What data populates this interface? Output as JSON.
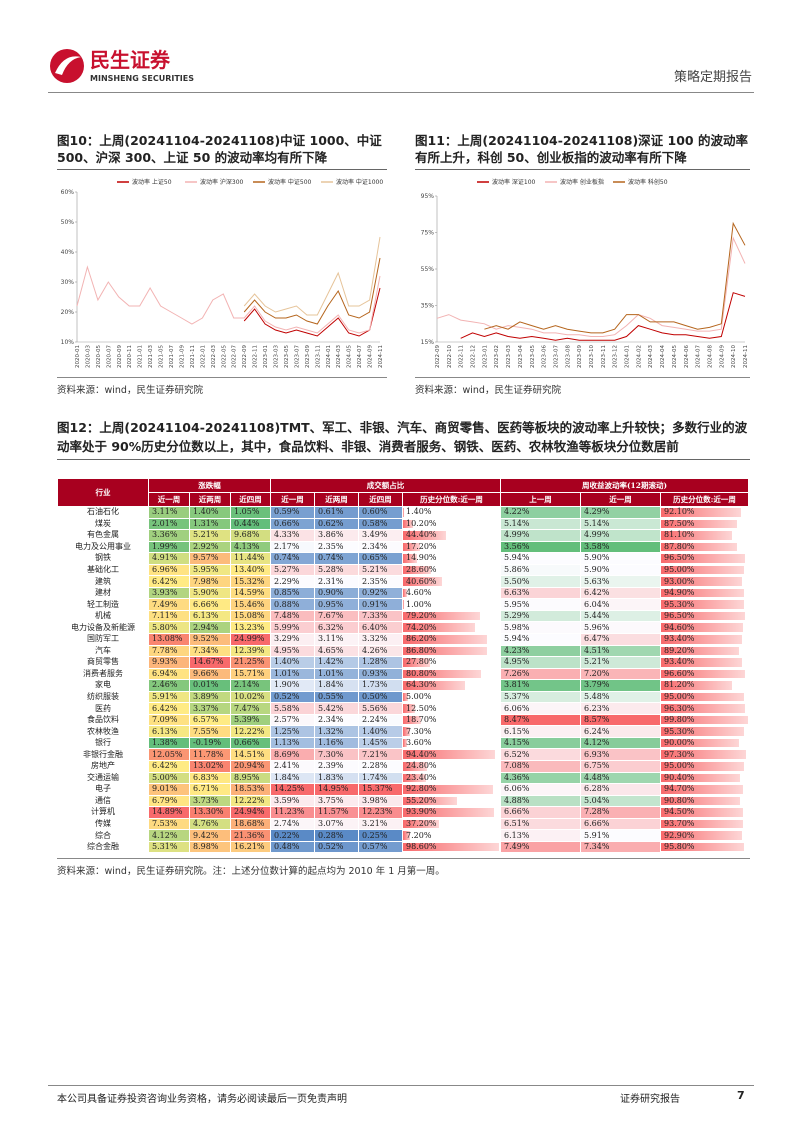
{
  "header": {
    "brand": "民生证券",
    "brand_en": "MINSHENG SECURITIES",
    "report_type": "策略定期报告"
  },
  "chart_data": [
    {
      "type": "line",
      "title": "图10：上周(20241104-20241108)中证 1000、中证 500、沪深 300、上证 50 的波动率均有所下降",
      "source": "资料来源：wind，民生证券研究院",
      "categories": [
        "2020-01",
        "2020-03",
        "2020-05",
        "2020-07",
        "2020-09",
        "2020-11",
        "2021-01",
        "2021-03",
        "2021-05",
        "2021-07",
        "2021-09",
        "2021-11",
        "2022-01",
        "2022-03",
        "2022-05",
        "2022-07",
        "2022-09",
        "2022-11",
        "2023-01",
        "2023-03",
        "2023-05",
        "2023-07",
        "2023-09",
        "2023-11",
        "2024-01",
        "2024-03",
        "2024-05",
        "2024-07",
        "2024-09",
        "2024-11"
      ],
      "series": [
        {
          "name": "波动率 上证50",
          "color": "#c00000",
          "values": [
            null,
            null,
            null,
            null,
            null,
            null,
            null,
            null,
            null,
            null,
            null,
            null,
            null,
            null,
            null,
            null,
            17,
            21,
            16,
            14,
            13,
            14,
            13,
            12,
            15,
            18,
            13,
            12,
            14,
            28
          ]
        },
        {
          "name": "波动率 沪深300",
          "color": "#f2b3b3",
          "values": [
            22,
            35,
            24,
            30,
            25,
            22,
            22,
            28,
            22,
            20,
            18,
            16,
            18,
            24,
            26,
            18,
            18,
            22,
            17,
            15,
            14,
            15,
            14,
            13,
            16,
            19,
            14,
            13,
            14,
            32
          ]
        },
        {
          "name": "波动率 中证500",
          "color": "#b5651d",
          "values": [
            null,
            null,
            null,
            null,
            null,
            null,
            null,
            null,
            null,
            null,
            null,
            null,
            null,
            null,
            null,
            null,
            20,
            24,
            20,
            18,
            18,
            19,
            17,
            16,
            22,
            27,
            19,
            18,
            20,
            38
          ]
        },
        {
          "name": "波动率 中证1000",
          "color": "#e6c49a",
          "values": [
            null,
            null,
            null,
            null,
            null,
            null,
            null,
            null,
            null,
            null,
            null,
            null,
            null,
            null,
            null,
            null,
            22,
            26,
            22,
            20,
            21,
            22,
            19,
            19,
            26,
            33,
            22,
            22,
            24,
            45
          ]
        }
      ],
      "ylim": [
        10,
        60
      ],
      "yticks": [
        {
          "value": 10,
          "label": "10%"
        },
        {
          "value": 20,
          "label": "20%"
        },
        {
          "value": 30,
          "label": "30%"
        },
        {
          "value": 40,
          "label": "40%"
        },
        {
          "value": 50,
          "label": "50%"
        },
        {
          "value": 60,
          "label": "60%"
        }
      ]
    },
    {
      "type": "line",
      "title": "图11：上周(20241104-20241108)深证 100 的波动率有所上升，科创 50、创业板指的波动率有所下降",
      "source": "资料来源：wind，民生证券研究院",
      "categories": [
        "2022-09",
        "2022-10",
        "2022-11",
        "2022-12",
        "2023-01",
        "2023-02",
        "2023-03",
        "2023-04",
        "2023-05",
        "2023-06",
        "2023-07",
        "2023-08",
        "2023-09",
        "2023-10",
        "2023-11",
        "2023-12",
        "2024-01",
        "2024-02",
        "2024-03",
        "2024-04",
        "2024-05",
        "2024-06",
        "2024-07",
        "2024-08",
        "2024-09",
        "2024-10",
        "2024-11"
      ],
      "series": [
        {
          "name": "波动率 深证100",
          "color": "#c00000",
          "values": [
            null,
            null,
            17,
            20,
            18,
            20,
            18,
            17,
            18,
            17,
            16,
            17,
            16,
            16,
            16,
            16,
            18,
            24,
            22,
            20,
            19,
            19,
            18,
            17,
            18,
            42,
            40
          ]
        },
        {
          "name": "波动率 创业板指",
          "color": "#f2b3b3",
          "values": [
            28,
            30,
            27,
            26,
            25,
            22,
            24,
            23,
            22,
            20,
            20,
            19,
            19,
            18,
            18,
            19,
            24,
            30,
            28,
            24,
            23,
            22,
            21,
            21,
            22,
            72,
            58
          ]
        },
        {
          "name": "波动率 科创50",
          "color": "#b5651d",
          "values": [
            null,
            null,
            null,
            null,
            22,
            24,
            22,
            26,
            24,
            22,
            24,
            22,
            21,
            20,
            20,
            22,
            30,
            30,
            26,
            26,
            26,
            24,
            22,
            23,
            25,
            80,
            68
          ]
        }
      ],
      "ylim": [
        15,
        95
      ],
      "yticks": [
        {
          "value": 15,
          "label": "15%"
        },
        {
          "value": 35,
          "label": "35%"
        },
        {
          "value": 55,
          "label": "55%"
        },
        {
          "value": 75,
          "label": "75%"
        },
        {
          "value": 95,
          "label": "95%"
        }
      ]
    }
  ],
  "table_figure": {
    "title": "图12：上周(20241104-20241108)TMT、军工、非银、汽车、商贸零售、医药等板块的波动率上升较快；多数行业的波动率处于 90%历史分位数以上，其中，食品饮料、非银、消费者服务、钢铁、医药、农林牧渔等板块分位数居前",
    "note": "资料来源：wind，民生证券研究院。注：上述分位数计算的起点均为 2010 年 1 月第一周。",
    "header_groups": [
      "行业",
      "涨跌幅",
      "成交额占比",
      "周收益波动率(12期滚动)"
    ],
    "columns": [
      "近一周",
      "近两周",
      "近四周",
      "近一周",
      "近两周",
      "近四周",
      "历史分位数:近一周",
      "上一周",
      "近一周",
      "历史分位数:近一周"
    ],
    "rows": [
      [
        "石油石化",
        "3.11%",
        "1.40%",
        "1.05%",
        "0.59%",
        "0.61%",
        "0.60%",
        "1.40%",
        "4.22%",
        "4.29%",
        "92.10%"
      ],
      [
        "煤炭",
        "2.01%",
        "1.31%",
        "0.44%",
        "0.66%",
        "0.62%",
        "0.58%",
        "10.20%",
        "5.14%",
        "5.14%",
        "87.50%"
      ],
      [
        "有色金属",
        "3.36%",
        "5.21%",
        "9.68%",
        "4.33%",
        "3.86%",
        "3.49%",
        "44.40%",
        "4.99%",
        "4.99%",
        "81.10%"
      ],
      [
        "电力及公用事业",
        "1.99%",
        "2.92%",
        "4.13%",
        "2.17%",
        "2.35%",
        "2.34%",
        "17.20%",
        "3.56%",
        "3.58%",
        "87.80%"
      ],
      [
        "钢铁",
        "4.91%",
        "9.57%",
        "11.44%",
        "0.74%",
        "0.74%",
        "0.65%",
        "14.90%",
        "5.94%",
        "5.90%",
        "96.50%"
      ],
      [
        "基础化工",
        "6.96%",
        "5.95%",
        "13.40%",
        "5.27%",
        "5.28%",
        "5.21%",
        "28.60%",
        "5.86%",
        "5.90%",
        "95.00%"
      ],
      [
        "建筑",
        "6.42%",
        "7.98%",
        "15.32%",
        "2.29%",
        "2.31%",
        "2.35%",
        "40.60%",
        "5.50%",
        "5.63%",
        "93.00%"
      ],
      [
        "建材",
        "3.93%",
        "5.90%",
        "14.59%",
        "0.85%",
        "0.90%",
        "0.92%",
        "4.60%",
        "6.63%",
        "6.42%",
        "94.90%"
      ],
      [
        "轻工制造",
        "7.49%",
        "6.66%",
        "15.46%",
        "0.88%",
        "0.95%",
        "0.91%",
        "1.00%",
        "5.95%",
        "6.04%",
        "95.30%"
      ],
      [
        "机械",
        "7.11%",
        "6.13%",
        "15.08%",
        "7.48%",
        "7.67%",
        "7.33%",
        "79.20%",
        "5.29%",
        "5.44%",
        "96.50%"
      ],
      [
        "电力设备及新能源",
        "5.80%",
        "2.94%",
        "13.23%",
        "5.99%",
        "6.32%",
        "6.40%",
        "74.20%",
        "5.98%",
        "5.96%",
        "94.60%"
      ],
      [
        "国防军工",
        "13.08%",
        "9.52%",
        "24.99%",
        "3.29%",
        "3.11%",
        "3.32%",
        "86.20%",
        "5.94%",
        "6.47%",
        "93.40%"
      ],
      [
        "汽车",
        "7.78%",
        "7.34%",
        "12.39%",
        "4.95%",
        "4.65%",
        "4.26%",
        "86.80%",
        "4.23%",
        "4.51%",
        "89.20%"
      ],
      [
        "商贸零售",
        "9.93%",
        "14.67%",
        "21.25%",
        "1.40%",
        "1.42%",
        "1.28%",
        "27.80%",
        "4.95%",
        "5.21%",
        "93.40%"
      ],
      [
        "消费者服务",
        "6.94%",
        "9.66%",
        "15.71%",
        "1.01%",
        "1.01%",
        "0.93%",
        "80.80%",
        "7.26%",
        "7.20%",
        "96.60%"
      ],
      [
        "家电",
        "2.46%",
        "0.01%",
        "2.14%",
        "1.90%",
        "1.84%",
        "1.73%",
        "64.30%",
        "3.81%",
        "3.79%",
        "81.20%"
      ],
      [
        "纺织服装",
        "5.91%",
        "3.89%",
        "10.02%",
        "0.52%",
        "0.55%",
        "0.50%",
        "5.00%",
        "5.37%",
        "5.48%",
        "95.00%"
      ],
      [
        "医药",
        "6.42%",
        "3.37%",
        "7.47%",
        "5.58%",
        "5.42%",
        "5.56%",
        "12.50%",
        "6.06%",
        "6.23%",
        "96.30%"
      ],
      [
        "食品饮料",
        "7.09%",
        "6.57%",
        "5.39%",
        "2.57%",
        "2.34%",
        "2.24%",
        "18.70%",
        "8.47%",
        "8.57%",
        "99.80%"
      ],
      [
        "农林牧渔",
        "6.13%",
        "7.55%",
        "12.22%",
        "1.25%",
        "1.32%",
        "1.40%",
        "7.30%",
        "6.15%",
        "6.24%",
        "95.30%"
      ],
      [
        "银行",
        "1.38%",
        "-0.19%",
        "0.66%",
        "1.13%",
        "1.16%",
        "1.45%",
        "3.60%",
        "4.15%",
        "4.12%",
        "90.00%"
      ],
      [
        "非银行金融",
        "12.05%",
        "11.78%",
        "14.51%",
        "8.69%",
        "7.30%",
        "7.21%",
        "94.40%",
        "6.52%",
        "6.93%",
        "97.30%"
      ],
      [
        "房地产",
        "6.42%",
        "13.02%",
        "20.94%",
        "2.41%",
        "2.39%",
        "2.28%",
        "24.80%",
        "7.08%",
        "6.75%",
        "95.00%"
      ],
      [
        "交通运输",
        "5.00%",
        "6.83%",
        "8.95%",
        "1.84%",
        "1.83%",
        "1.74%",
        "23.40%",
        "4.36%",
        "4.48%",
        "90.40%"
      ],
      [
        "电子",
        "9.01%",
        "6.71%",
        "18.53%",
        "14.25%",
        "14.95%",
        "15.37%",
        "92.80%",
        "6.06%",
        "6.28%",
        "94.70%"
      ],
      [
        "通信",
        "6.79%",
        "3.73%",
        "12.22%",
        "3.59%",
        "3.75%",
        "3.98%",
        "55.20%",
        "4.88%",
        "5.04%",
        "90.80%"
      ],
      [
        "计算机",
        "14.89%",
        "13.30%",
        "24.94%",
        "11.23%",
        "11.57%",
        "12.23%",
        "93.90%",
        "6.66%",
        "7.28%",
        "94.50%"
      ],
      [
        "传媒",
        "7.53%",
        "4.76%",
        "18.68%",
        "2.74%",
        "3.07%",
        "3.21%",
        "37.20%",
        "6.51%",
        "6.66%",
        "93.70%"
      ],
      [
        "综合",
        "4.12%",
        "9.42%",
        "21.36%",
        "0.22%",
        "0.28%",
        "0.25%",
        "7.20%",
        "6.13%",
        "5.91%",
        "92.90%"
      ],
      [
        "综合金融",
        "5.31%",
        "8.98%",
        "16.21%",
        "0.48%",
        "0.52%",
        "0.57%",
        "98.60%",
        "7.49%",
        "7.34%",
        "95.80%"
      ]
    ]
  },
  "footer": {
    "disclaimer": "本公司具备证券投资咨询业务资格，请务必阅读最后一页免责声明",
    "label": "证券研究报告",
    "page": 7
  }
}
